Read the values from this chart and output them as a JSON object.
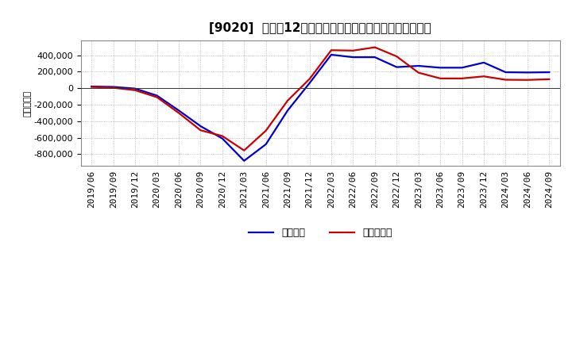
{
  "title": "[9020]  利益の12か月移動合計の対前年同期増減額の推移",
  "ylabel": "（百万円）",
  "background_color": "#ffffff",
  "grid_color": "#b0b0b0",
  "x_labels": [
    "2019/06",
    "2019/09",
    "2019/12",
    "2020/03",
    "2020/06",
    "2020/09",
    "2020/12",
    "2021/03",
    "2021/06",
    "2021/09",
    "2021/12",
    "2022/03",
    "2022/06",
    "2022/09",
    "2022/12",
    "2023/03",
    "2023/06",
    "2023/09",
    "2023/12",
    "2024/03",
    "2024/06",
    "2024/09"
  ],
  "keijo_rieki": [
    20000,
    15000,
    -5000,
    -90000,
    -270000,
    -460000,
    -610000,
    -880000,
    -680000,
    -270000,
    60000,
    405000,
    375000,
    375000,
    255000,
    270000,
    248000,
    248000,
    310000,
    193000,
    190000,
    193000
  ],
  "toki_jun_rieki": [
    15000,
    5000,
    -25000,
    -110000,
    -300000,
    -510000,
    -580000,
    -755000,
    -515000,
    -150000,
    110000,
    460000,
    455000,
    495000,
    385000,
    188000,
    118000,
    118000,
    143000,
    102000,
    100000,
    108000
  ],
  "line_color_keijo": "#0000cc",
  "line_color_toki": "#cc0000",
  "line_width": 1.6,
  "legend_keijo": "経常利益",
  "legend_toki": "当期純利益",
  "ylim_min": -900000,
  "ylim_max": 500000,
  "yticks": [
    -800000,
    -600000,
    -400000,
    -200000,
    0,
    200000,
    400000
  ],
  "title_fontsize": 11,
  "tick_fontsize": 8,
  "ylabel_fontsize": 8
}
